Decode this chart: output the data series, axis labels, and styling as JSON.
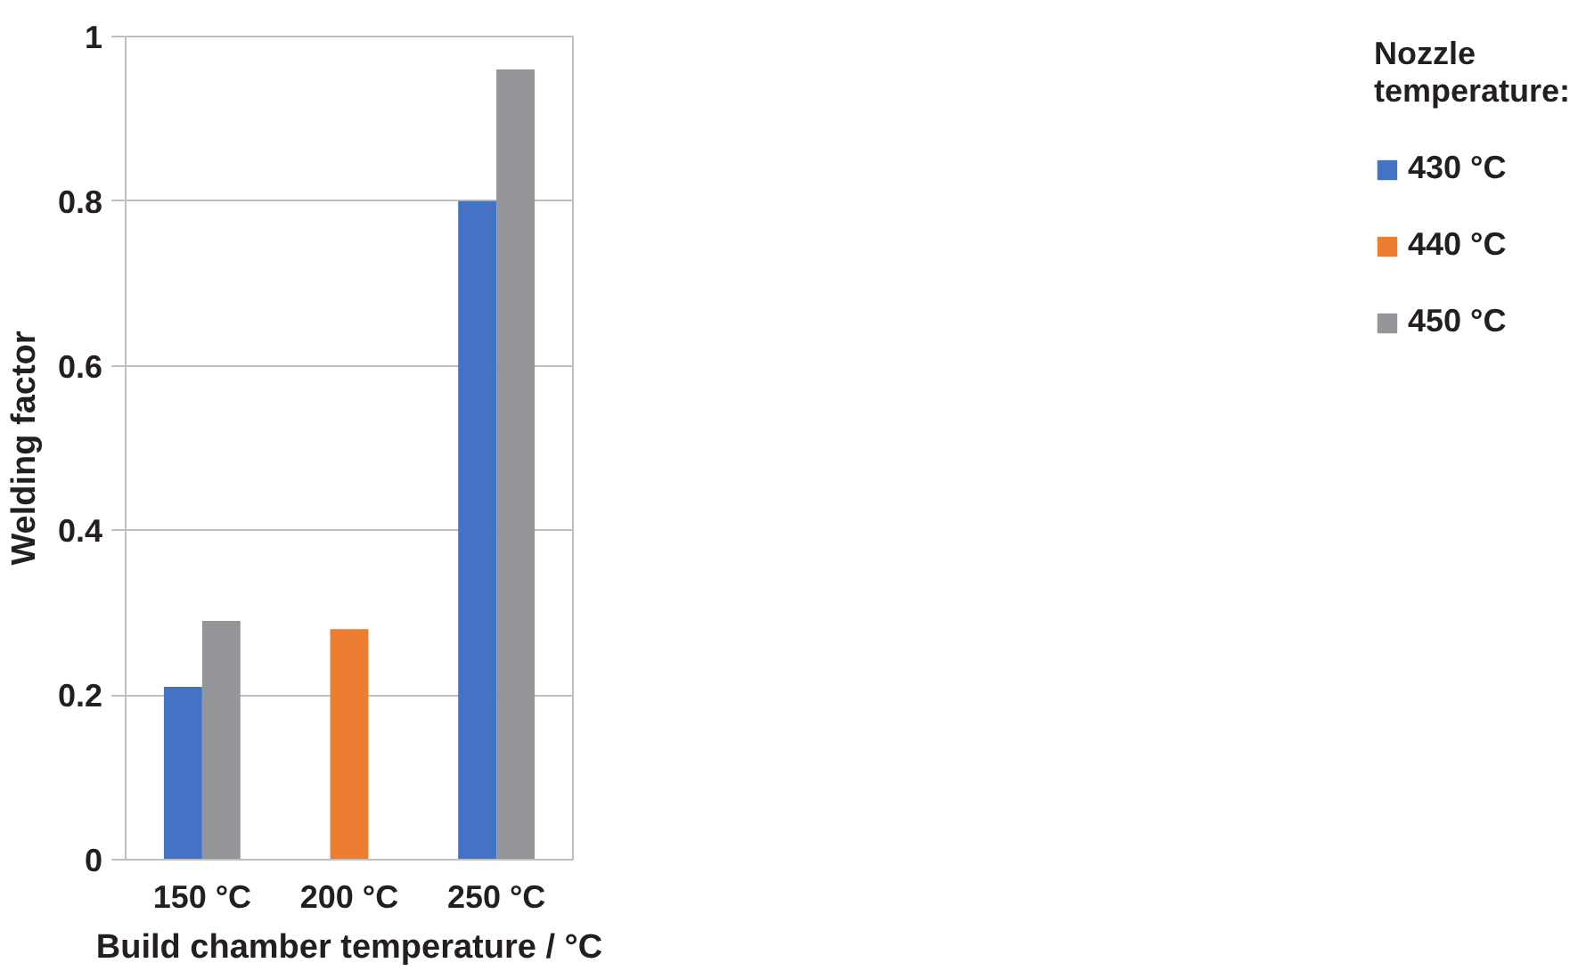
{
  "chart_data": {
    "type": "bar",
    "xlabel": "Build chamber temperature / °C",
    "ylabel": "Welding factor",
    "legend_title": "Nozzle temperature:",
    "categories": [
      "150 °C",
      "200 °C",
      "250 °C"
    ],
    "series": [
      {
        "name": "430 °C",
        "color": "#4472c4",
        "values": [
          0.21,
          null,
          0.8
        ]
      },
      {
        "name": "440 °C",
        "color": "#ed7d31",
        "values": [
          null,
          0.28,
          null
        ]
      },
      {
        "name": "450 °C",
        "color": "#939598",
        "values": [
          0.29,
          null,
          0.96
        ]
      }
    ],
    "ylim": [
      0,
      1
    ],
    "yticks": [
      0,
      0.2,
      0.4,
      0.6,
      0.8,
      1
    ],
    "grid": "y",
    "legend": "right"
  }
}
